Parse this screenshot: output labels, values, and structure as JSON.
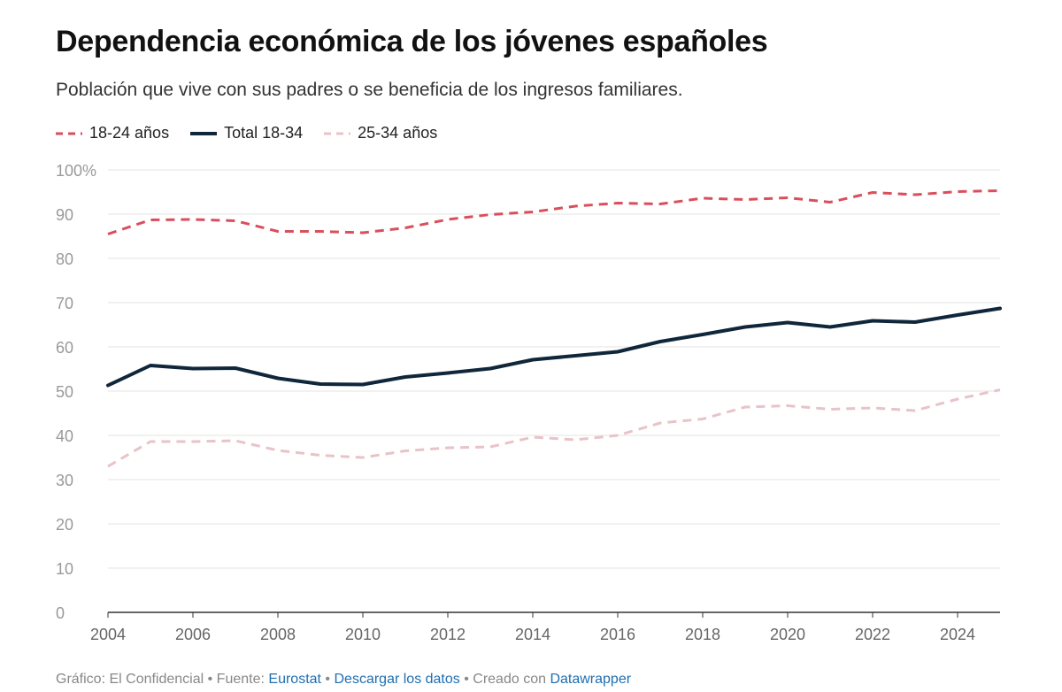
{
  "header": {
    "title": "Dependencia económica de los jóvenes españoles",
    "subtitle": "Población que vive con sus padres o se beneficia de los ingresos familiares."
  },
  "legend": [
    {
      "label": "18-24 años",
      "color": "#d94f5c",
      "dash": true
    },
    {
      "label": "Total 18-34",
      "color": "#10263a",
      "dash": false
    },
    {
      "label": "25-34 años",
      "color": "#e8c3c8",
      "dash": true
    }
  ],
  "chart_data": {
    "type": "line",
    "x": [
      2004,
      2005,
      2006,
      2007,
      2008,
      2009,
      2010,
      2011,
      2012,
      2013,
      2014,
      2015,
      2016,
      2017,
      2018,
      2019,
      2020,
      2021,
      2022,
      2023,
      2024,
      2025
    ],
    "xticks": [
      "2004",
      "2006",
      "2008",
      "2010",
      "2012",
      "2014",
      "2016",
      "2018",
      "2020",
      "2022",
      "2024"
    ],
    "yticks": [
      "0",
      "10",
      "20",
      "30",
      "40",
      "50",
      "60",
      "70",
      "80",
      "90",
      "100%"
    ],
    "ylim": [
      0,
      100
    ],
    "xlim": [
      2004,
      2025
    ],
    "grid": true,
    "legend_position": "top-left",
    "series": [
      {
        "name": "18-24 años",
        "color": "#d94f5c",
        "style": "dashed",
        "values": [
          85.5,
          88.7,
          88.8,
          88.5,
          86.1,
          86.1,
          85.8,
          86.9,
          88.8,
          89.9,
          90.5,
          91.8,
          92.5,
          92.3,
          93.6,
          93.3,
          93.7,
          92.7,
          94.9,
          94.4,
          95.1,
          95.3
        ]
      },
      {
        "name": "Total 18-34",
        "color": "#10263a",
        "style": "solid",
        "values": [
          51.3,
          55.8,
          55.1,
          55.2,
          52.9,
          51.6,
          51.5,
          53.2,
          54.1,
          55.1,
          57.1,
          58.0,
          58.9,
          61.2,
          62.8,
          64.5,
          65.5,
          64.5,
          65.9,
          65.6,
          67.2,
          68.7
        ]
      },
      {
        "name": "25-34 años",
        "color": "#e8c3c8",
        "style": "dashed",
        "values": [
          33.0,
          38.6,
          38.6,
          38.8,
          36.6,
          35.5,
          35.0,
          36.5,
          37.2,
          37.4,
          39.6,
          39.0,
          40.0,
          42.8,
          43.7,
          46.4,
          46.7,
          45.9,
          46.2,
          45.6,
          48.2,
          50.3
        ]
      }
    ]
  },
  "footer": {
    "prefix": "Gráfico: El Confidencial • Fuente: ",
    "source_link": "Eurostat",
    "sep1": " • ",
    "download_link": "Descargar los datos",
    "sep2": " • Creado con ",
    "datawrapper_link": "Datawrapper"
  }
}
